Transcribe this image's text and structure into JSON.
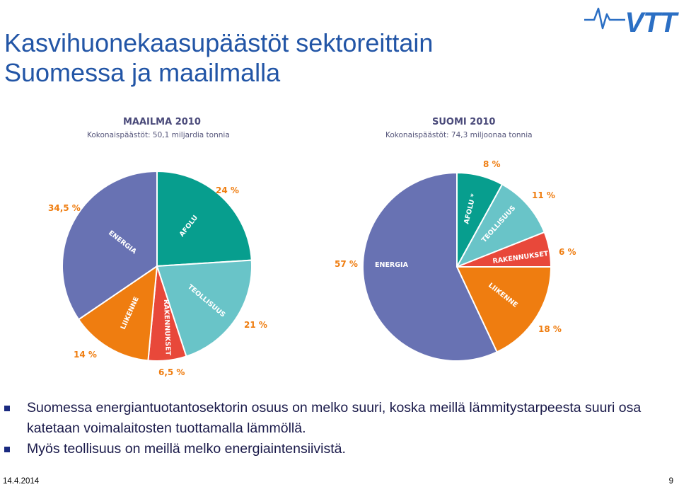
{
  "slide": {
    "title_line1": "Kasvihuonekaasupäästöt sektoreittain",
    "title_line2": "Suomessa ja maailmalla",
    "logo_text": "VTT",
    "footer_date": "14.4.2014",
    "page_number": "9"
  },
  "bullets": [
    "Suomessa energiantuotantosektorin osuus on melko suuri, koska meillä lämmitystarpeesta suuri osa katetaan voimalaitosten tuottamalla lämmöllä.",
    "Myös teollisuus on meillä melko energiaintensiivistä."
  ],
  "colors": {
    "title": "#2255a6",
    "energia": "#6872b3",
    "afolu": "#079e8e",
    "teollisuus": "#69c4c8",
    "rakennukset": "#e8483a",
    "liikenne": "#ef7d10",
    "percent_text": "#ef7d10",
    "header_text": "#4a4a7a"
  },
  "chart_data": [
    {
      "type": "pie",
      "title": "MAAILMA 2010",
      "subtitle": "Kokonaispäästöt: 50,1 miljardia tonnia",
      "slices": [
        {
          "key": "afolu",
          "label": "AFOLU",
          "value": 24,
          "value_label": "24 %"
        },
        {
          "key": "teollisuus",
          "label": "TEOLLISUUS",
          "value": 21,
          "value_label": "21 %"
        },
        {
          "key": "rakennukset",
          "label": "RAKENNUKSET",
          "value": 6.5,
          "value_label": "6,5 %"
        },
        {
          "key": "liikenne",
          "label": "LIIKENNE",
          "value": 14,
          "value_label": "14 %"
        },
        {
          "key": "energia",
          "label": "ENERGIA",
          "value": 34.5,
          "value_label": "34,5 %"
        }
      ]
    },
    {
      "type": "pie",
      "title": "SUOMI 2010",
      "subtitle": "Kokonaispäästöt: 74,3 miljoonaa tonnia",
      "slices": [
        {
          "key": "afolu",
          "label": "AFOLU *",
          "value": 8,
          "value_label": "8 %"
        },
        {
          "key": "teollisuus",
          "label": "TEOLLISUUS",
          "value": 11,
          "value_label": "11 %"
        },
        {
          "key": "rakennukset",
          "label": "RAKENNUKSET",
          "value": 6,
          "value_label": "6 %"
        },
        {
          "key": "liikenne",
          "label": "LIIKENNE",
          "value": 18,
          "value_label": "18 %"
        },
        {
          "key": "energia",
          "label": "ENERGIA",
          "value": 57,
          "value_label": "57 %"
        }
      ]
    }
  ]
}
